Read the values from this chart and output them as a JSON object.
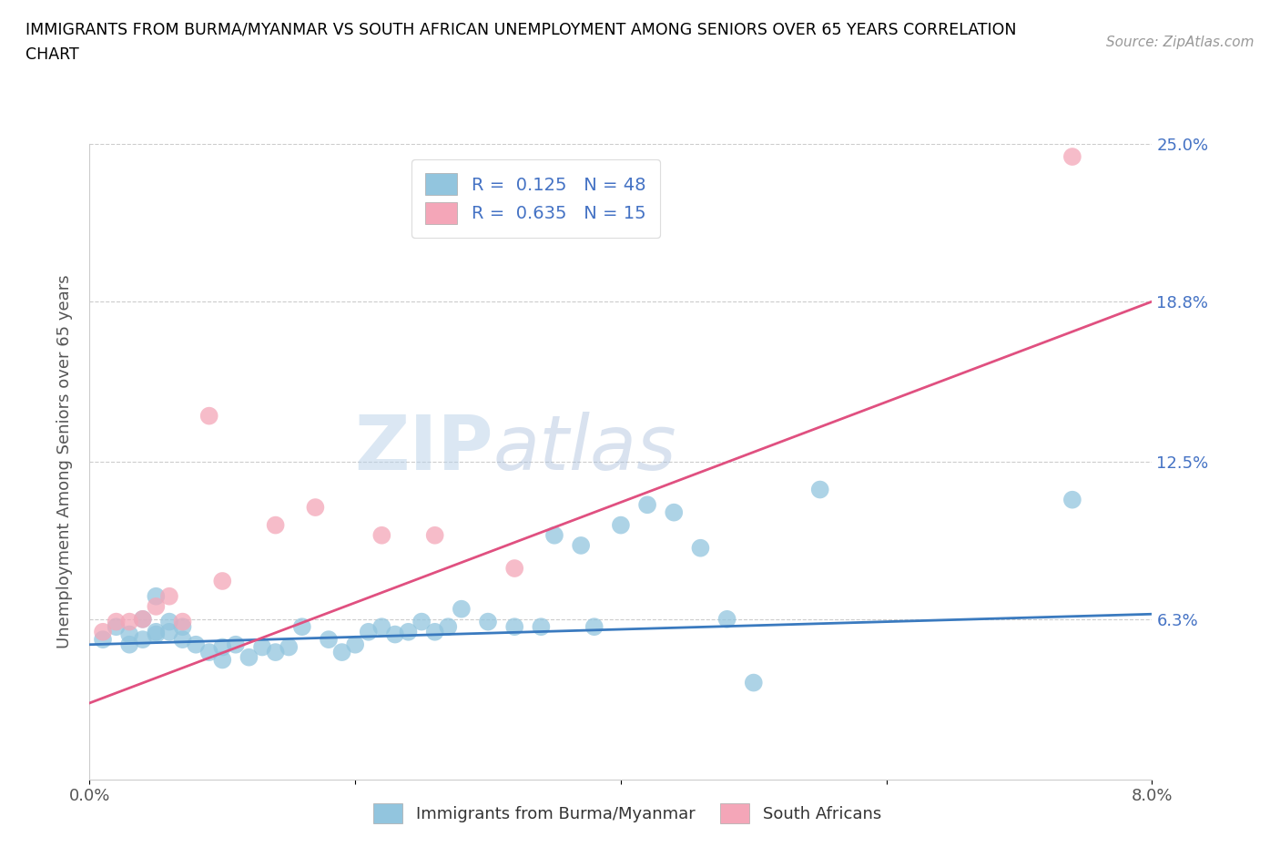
{
  "title_line1": "IMMIGRANTS FROM BURMA/MYANMAR VS SOUTH AFRICAN UNEMPLOYMENT AMONG SENIORS OVER 65 YEARS CORRELATION",
  "title_line2": "CHART",
  "source": "Source: ZipAtlas.com",
  "ylabel": "Unemployment Among Seniors over 65 years",
  "xmin": 0.0,
  "xmax": 0.08,
  "ymin": 0.0,
  "ymax": 0.25,
  "ytick_positions": [
    0.063,
    0.125,
    0.188,
    0.25
  ],
  "ytick_labels": [
    "6.3%",
    "12.5%",
    "18.8%",
    "25.0%"
  ],
  "xtick_positions": [
    0.0,
    0.02,
    0.04,
    0.06,
    0.08
  ],
  "xtick_labels": [
    "0.0%",
    "",
    "",
    "",
    "8.0%"
  ],
  "legend_r1": "R =  0.125   N = 48",
  "legend_r2": "R =  0.635   N = 15",
  "color_blue": "#92c5de",
  "color_pink": "#f4a6b8",
  "color_blue_line": "#3a7abf",
  "color_pink_line": "#e05080",
  "watermark_text": "ZIPatlas",
  "blue_scatter_x": [
    0.001,
    0.002,
    0.003,
    0.003,
    0.004,
    0.004,
    0.005,
    0.005,
    0.005,
    0.006,
    0.006,
    0.007,
    0.007,
    0.008,
    0.009,
    0.01,
    0.01,
    0.011,
    0.012,
    0.013,
    0.014,
    0.015,
    0.016,
    0.018,
    0.019,
    0.02,
    0.021,
    0.022,
    0.023,
    0.024,
    0.025,
    0.026,
    0.027,
    0.028,
    0.03,
    0.032,
    0.034,
    0.035,
    0.037,
    0.038,
    0.04,
    0.042,
    0.044,
    0.046,
    0.048,
    0.05,
    0.055,
    0.074
  ],
  "blue_scatter_y": [
    0.055,
    0.06,
    0.053,
    0.057,
    0.055,
    0.063,
    0.058,
    0.057,
    0.072,
    0.058,
    0.062,
    0.055,
    0.06,
    0.053,
    0.05,
    0.047,
    0.052,
    0.053,
    0.048,
    0.052,
    0.05,
    0.052,
    0.06,
    0.055,
    0.05,
    0.053,
    0.058,
    0.06,
    0.057,
    0.058,
    0.062,
    0.058,
    0.06,
    0.067,
    0.062,
    0.06,
    0.06,
    0.096,
    0.092,
    0.06,
    0.1,
    0.108,
    0.105,
    0.091,
    0.063,
    0.038,
    0.114,
    0.11
  ],
  "pink_scatter_x": [
    0.001,
    0.002,
    0.003,
    0.004,
    0.005,
    0.006,
    0.007,
    0.009,
    0.01,
    0.014,
    0.017,
    0.022,
    0.026,
    0.032,
    0.074
  ],
  "pink_scatter_y": [
    0.058,
    0.062,
    0.062,
    0.063,
    0.068,
    0.072,
    0.062,
    0.143,
    0.078,
    0.1,
    0.107,
    0.096,
    0.096,
    0.083,
    0.245
  ],
  "blue_line_x": [
    0.0,
    0.08
  ],
  "blue_line_y": [
    0.053,
    0.065
  ],
  "pink_line_x": [
    0.0,
    0.08
  ],
  "pink_line_y": [
    0.03,
    0.188
  ]
}
